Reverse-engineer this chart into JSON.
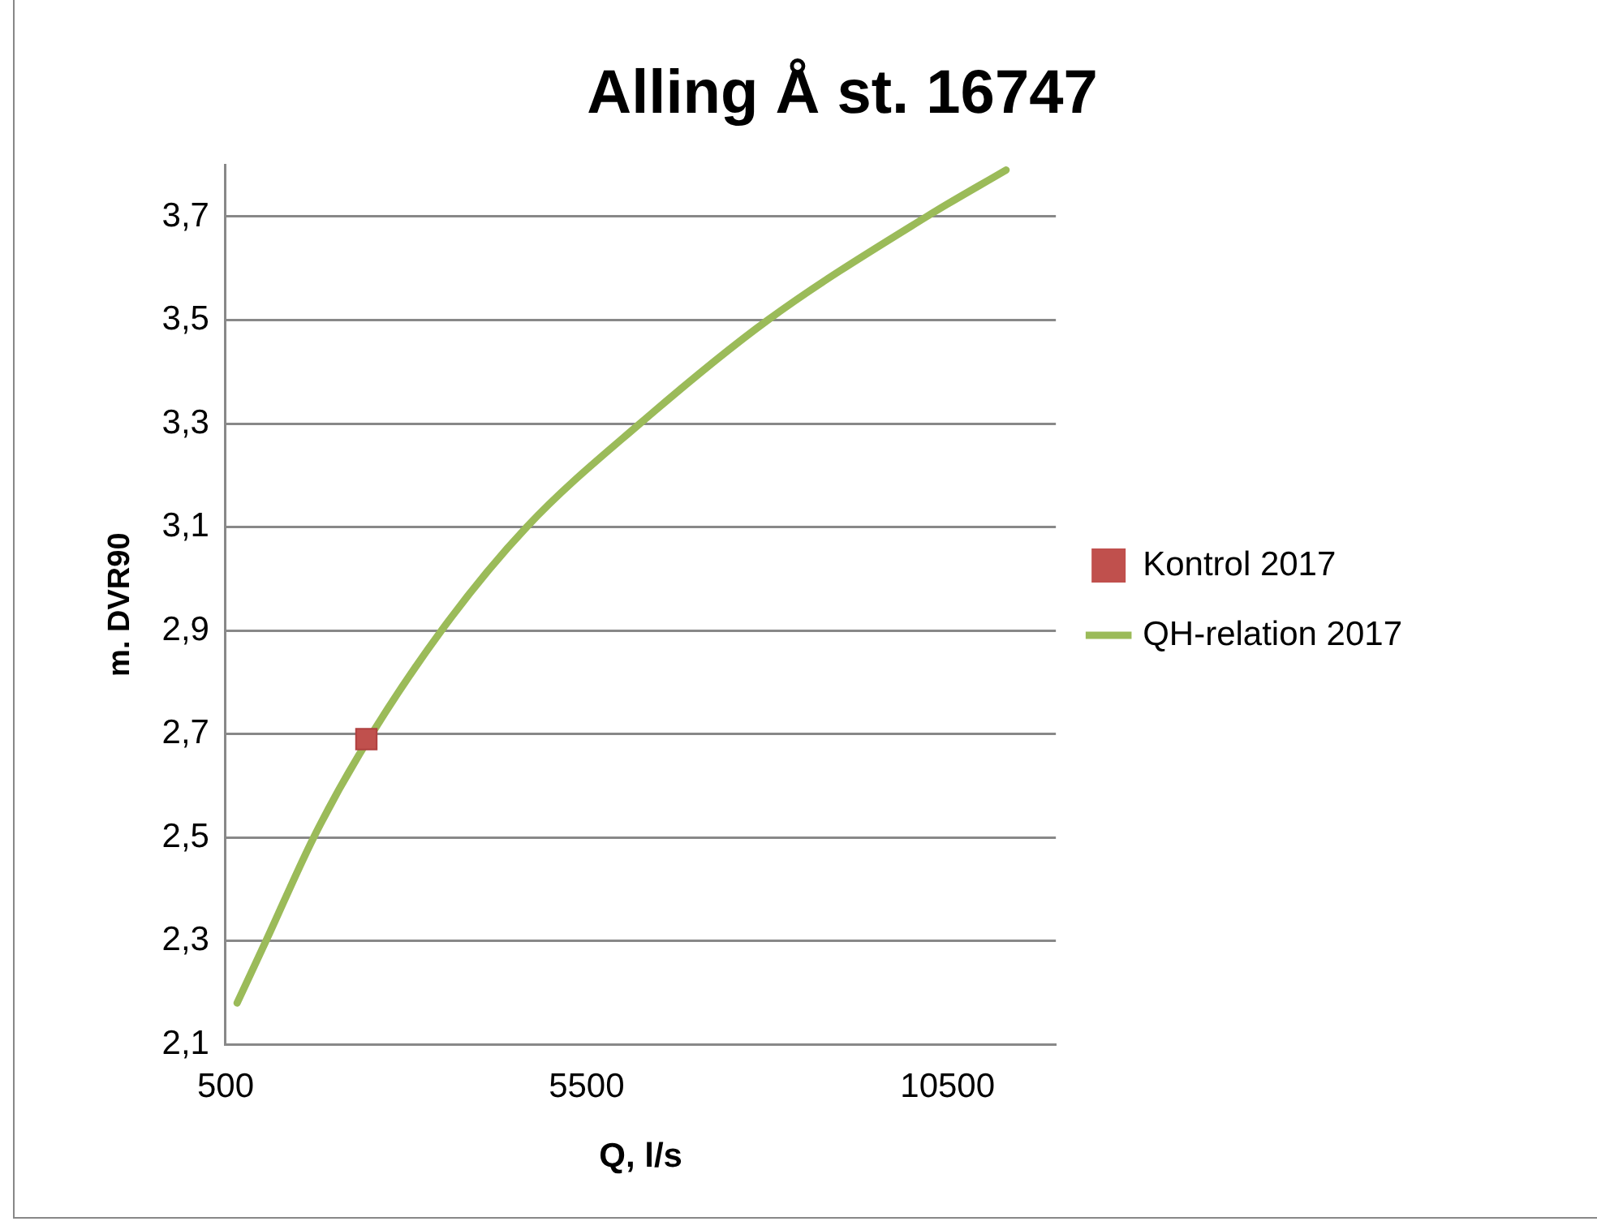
{
  "chart_data": {
    "type": "scatter",
    "title": "Alling Å st. 16747",
    "xlabel": "Q, l/s",
    "ylabel": "m. DVR90",
    "xlim": [
      500,
      12000
    ],
    "xticks": [
      500,
      5500,
      10500
    ],
    "ylim": [
      2.1,
      3.8
    ],
    "yticks": [
      {
        "value": 2.1,
        "label": "2,1"
      },
      {
        "value": 2.3,
        "label": "2,3"
      },
      {
        "value": 2.5,
        "label": "2,5"
      },
      {
        "value": 2.7,
        "label": "2,7"
      },
      {
        "value": 2.9,
        "label": "2,9"
      },
      {
        "value": 3.1,
        "label": "3,1"
      },
      {
        "value": 3.3,
        "label": "3,3"
      },
      {
        "value": 3.5,
        "label": "3,5"
      },
      {
        "value": 3.7,
        "label": "3,7"
      }
    ],
    "grid": "y",
    "legend": "right",
    "series": [
      {
        "name": "Kontrol 2017",
        "marker": "square",
        "color": "#c0504d",
        "x": [
          2450
        ],
        "values": [
          2.69
        ]
      },
      {
        "name": "QH-relation 2017",
        "type": "line",
        "marker": "none",
        "line_style": "solid",
        "color": "#9bbb59",
        "x": [
          660,
          1060,
          1720,
          2350,
          3490,
          4670,
          6240,
          8010,
          10210,
          11310
        ],
        "values": [
          2.18,
          2.3,
          2.5,
          2.66,
          2.9,
          3.1,
          3.3,
          3.5,
          3.7,
          3.79
        ]
      }
    ]
  }
}
